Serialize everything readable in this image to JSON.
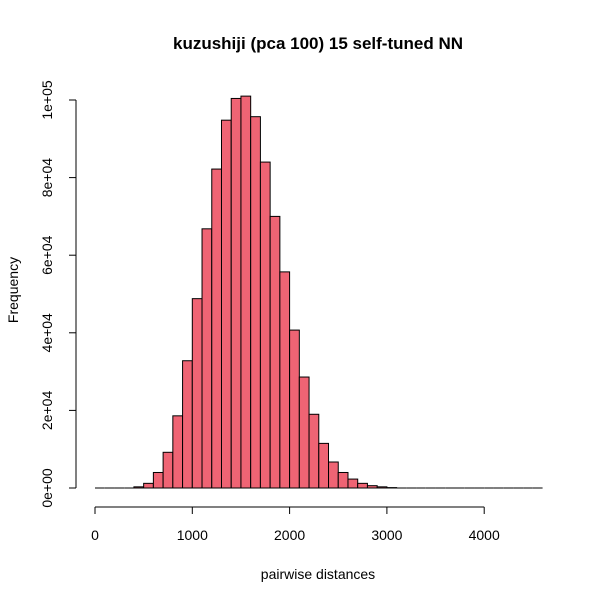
{
  "chart_data": {
    "type": "bar",
    "title": "kuzushiji (pca 100) 15 self-tuned NN",
    "xlabel": "pairwise distances",
    "ylabel": "Frequency",
    "xlim": [
      0,
      4600
    ],
    "ylim": [
      0,
      100000
    ],
    "x_ticks": [
      0,
      1000,
      2000,
      3000,
      4000
    ],
    "x_tick_labels": [
      "0",
      "1000",
      "2000",
      "3000",
      "4000"
    ],
    "y_ticks": [
      0,
      20000,
      40000,
      60000,
      80000,
      100000
    ],
    "y_tick_labels": [
      "0e+00",
      "2e+04",
      "4e+04",
      "6e+04",
      "8e+04",
      "1e+05"
    ],
    "bar_color": "#ef6474",
    "bin_width": 100,
    "bin_starts": [
      0,
      100,
      200,
      300,
      400,
      500,
      600,
      700,
      800,
      900,
      1000,
      1100,
      1200,
      1300,
      1400,
      1500,
      1600,
      1700,
      1800,
      1900,
      2000,
      2100,
      2200,
      2300,
      2400,
      2500,
      2600,
      2700,
      2800,
      2900,
      3000,
      3100,
      3200,
      3300,
      3400,
      3500,
      3600,
      3700,
      3800,
      3900,
      4000,
      4100,
      4200,
      4300,
      4400,
      4500
    ],
    "values": [
      0,
      0,
      0,
      0,
      300,
      1200,
      4000,
      9200,
      18600,
      32800,
      48800,
      66800,
      82200,
      94800,
      100400,
      101000,
      95700,
      84000,
      70000,
      55700,
      40700,
      28600,
      19000,
      11500,
      6700,
      4000,
      2300,
      1200,
      600,
      300,
      100,
      0,
      0,
      0,
      0,
      0,
      0,
      0,
      0,
      0,
      0,
      0,
      0,
      0,
      0,
      0
    ]
  }
}
